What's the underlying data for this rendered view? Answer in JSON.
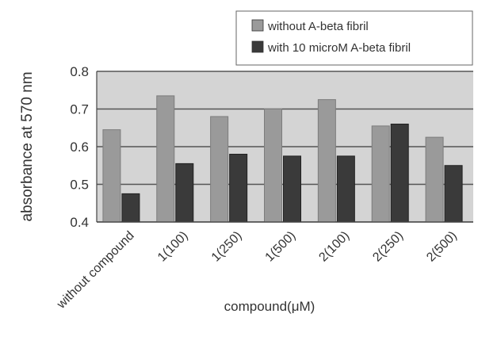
{
  "chart_data": {
    "type": "bar",
    "title": "",
    "xlabel": "compound(μM)",
    "ylabel": "absorbance at 570 nm",
    "ylim": [
      0.4,
      0.8
    ],
    "y_ticks": [
      "0.4",
      "0.5",
      "0.6",
      "0.7",
      "0.8"
    ],
    "grid": true,
    "legend_position": "top-right",
    "categories": [
      "without compound",
      "1(100)",
      "1(250)",
      "1(500)",
      "2(100)",
      "2(250)",
      "2(500)"
    ],
    "series": [
      {
        "name": "without A-beta fibril",
        "color": "#9a9a9a",
        "values": [
          0.645,
          0.735,
          0.68,
          0.7,
          0.725,
          0.655,
          0.625
        ]
      },
      {
        "name": "with 10 microM A-beta fibril",
        "color": "#3a3a3a",
        "values": [
          0.475,
          0.555,
          0.58,
          0.575,
          0.575,
          0.66,
          0.55
        ]
      }
    ],
    "colors": {
      "plot_background": "#d4d4d4",
      "gridline": "#555555",
      "axis_text": "#333333"
    }
  }
}
